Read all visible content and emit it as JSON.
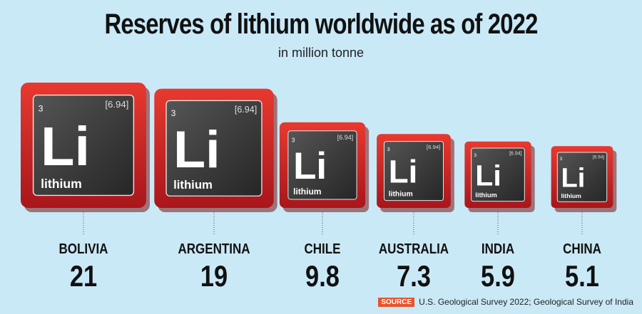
{
  "title": "Reserves of lithium worldwide as of 2022",
  "subtitle": "in million tonne",
  "source": {
    "tag": "SOURCE",
    "text": "U.S. Geological Survey 2022; Geological Survey of India"
  },
  "element": {
    "symbol": "Li",
    "name": "lithium",
    "number": "3",
    "mass": "[6.94]"
  },
  "colors": {
    "background": "#c9e9f7",
    "tile_red": "#d42a24",
    "tile_dark": "#333333"
  },
  "chart_data": {
    "type": "bar",
    "title": "Reserves of lithium worldwide as of 2022",
    "subtitle": "in million tonne",
    "categories": [
      "BOLIVIA",
      "ARGENTINA",
      "CHILE",
      "AUSTRALIA",
      "INDIA",
      "CHINA"
    ],
    "values": [
      21,
      19,
      9.8,
      7.3,
      5.9,
      5.1
    ],
    "value_labels": [
      "21",
      "19",
      "9.8",
      "7.3",
      "5.9",
      "5.1"
    ]
  }
}
